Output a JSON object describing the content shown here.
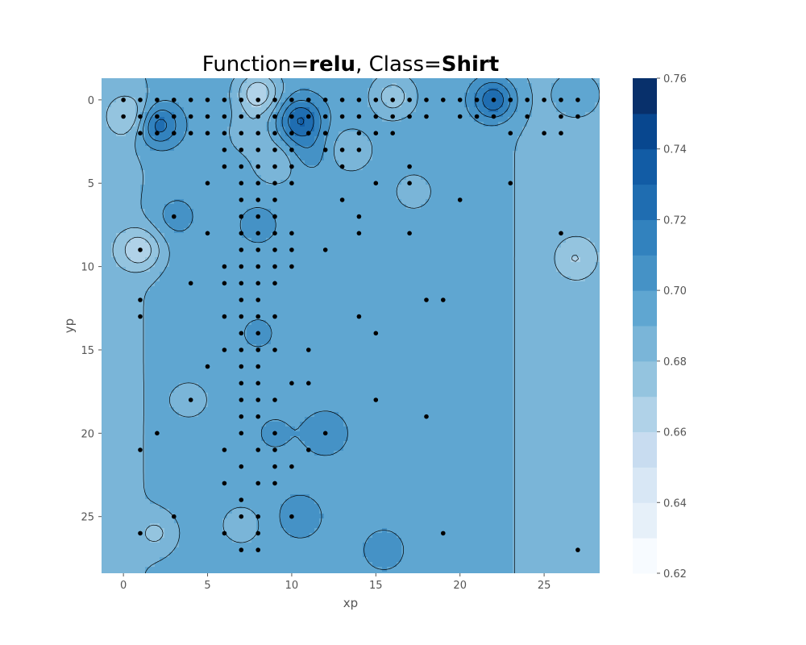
{
  "chart_data": {
    "type": "contour",
    "title": {
      "prefix": "Function=",
      "function": "relu",
      "separator": ", Class=",
      "class": "Shirt"
    },
    "xlabel": "xp",
    "ylabel": "yp",
    "xlim": [
      -1.3,
      28.3
    ],
    "ylim": [
      28.4,
      -1.3
    ],
    "x_ticks": [
      0,
      5,
      10,
      15,
      20,
      25
    ],
    "y_ticks": [
      0,
      5,
      10,
      15,
      20,
      25
    ],
    "colorbar": {
      "range": [
        0.62,
        0.76
      ],
      "levels": [
        0.62,
        0.63,
        0.64,
        0.65,
        0.66,
        0.67,
        0.68,
        0.69,
        0.7,
        0.71,
        0.72,
        0.73,
        0.74,
        0.75,
        0.76
      ],
      "tick_values": [
        0.62,
        0.64,
        0.66,
        0.68,
        0.7,
        0.72,
        0.74,
        0.76
      ],
      "tick_labels": [
        "0.62",
        "0.64",
        "0.66",
        "0.68",
        "0.70",
        "0.72",
        "0.74",
        "0.76"
      ],
      "colormap": "Blues",
      "colors": [
        "#f7fbff",
        "#e6f0f9",
        "#d8e7f5",
        "#c8dcf0",
        "#b0d2e8",
        "#94c4df",
        "#7ab5d8",
        "#5fa6d1",
        "#4592c6",
        "#3282be",
        "#1f6db1",
        "#125ca5",
        "#08478f",
        "#08306b"
      ]
    },
    "field": {
      "base": 0.696,
      "left_edge_value": 0.685,
      "right_edge_value": 0.685,
      "bumps": [
        {
          "x": 22,
          "y": 0,
          "value": 0.732
        },
        {
          "x": 10.5,
          "y": 1.2,
          "value": 0.73
        },
        {
          "x": 2,
          "y": 1.5,
          "value": 0.73
        },
        {
          "x": 8,
          "y": -0.4,
          "value": 0.662
        },
        {
          "x": 0.5,
          "y": 1,
          "value": 0.675
        },
        {
          "x": 1,
          "y": 9,
          "value": 0.668
        },
        {
          "x": 16,
          "y": -0.2,
          "value": 0.675
        },
        {
          "x": 27,
          "y": -0.3,
          "value": 0.71
        },
        {
          "x": 2,
          "y": 26,
          "value": 0.682
        },
        {
          "x": 7,
          "y": 25.5,
          "value": 0.684
        },
        {
          "x": 15.5,
          "y": 27,
          "value": 0.706
        },
        {
          "x": 17.2,
          "y": 5.5,
          "value": 0.686
        },
        {
          "x": 26.8,
          "y": 9.5,
          "value": 0.68
        },
        {
          "x": 9,
          "y": 3.8,
          "value": 0.68
        },
        {
          "x": 13.5,
          "y": 3,
          "value": 0.68
        },
        {
          "x": 7.5,
          "y": 2,
          "value": 0.682
        },
        {
          "x": 8,
          "y": 7.5,
          "value": 0.704
        },
        {
          "x": 12,
          "y": 20,
          "value": 0.708
        },
        {
          "x": 10.5,
          "y": 25,
          "value": 0.707
        },
        {
          "x": 8,
          "y": 14,
          "value": 0.702
        },
        {
          "x": 9,
          "y": 20,
          "value": 0.702
        },
        {
          "x": 4,
          "y": 18,
          "value": 0.686
        },
        {
          "x": 3,
          "y": 7,
          "value": 0.706
        },
        {
          "x": 11,
          "y": 3,
          "value": 0.706
        }
      ]
    },
    "points": [
      [
        0,
        0
      ],
      [
        1,
        0
      ],
      [
        2,
        0
      ],
      [
        3,
        0
      ],
      [
        4,
        0
      ],
      [
        5,
        0
      ],
      [
        6,
        0
      ],
      [
        7,
        0
      ],
      [
        8,
        0
      ],
      [
        9,
        0
      ],
      [
        10,
        0
      ],
      [
        11,
        0
      ],
      [
        12,
        0
      ],
      [
        13,
        0
      ],
      [
        14,
        0
      ],
      [
        15,
        0
      ],
      [
        16,
        0
      ],
      [
        17,
        0
      ],
      [
        18,
        0
      ],
      [
        19,
        0
      ],
      [
        20,
        0
      ],
      [
        21,
        0
      ],
      [
        22,
        0
      ],
      [
        23,
        0
      ],
      [
        24,
        0
      ],
      [
        25,
        0
      ],
      [
        26,
        0
      ],
      [
        27,
        0
      ],
      [
        0,
        1
      ],
      [
        1,
        1
      ],
      [
        2,
        1
      ],
      [
        3,
        1
      ],
      [
        4,
        1
      ],
      [
        5,
        1
      ],
      [
        6,
        1
      ],
      [
        7,
        1
      ],
      [
        8,
        1
      ],
      [
        9,
        1
      ],
      [
        10,
        1
      ],
      [
        11,
        1
      ],
      [
        12,
        1
      ],
      [
        13,
        1
      ],
      [
        14,
        1
      ],
      [
        15,
        1
      ],
      [
        16,
        1
      ],
      [
        17,
        1
      ],
      [
        18,
        1
      ],
      [
        20,
        1
      ],
      [
        21,
        1
      ],
      [
        22,
        1
      ],
      [
        24,
        1
      ],
      [
        26,
        1
      ],
      [
        27,
        1
      ],
      [
        1,
        2
      ],
      [
        2,
        2
      ],
      [
        3,
        2
      ],
      [
        4,
        2
      ],
      [
        5,
        2
      ],
      [
        6,
        2
      ],
      [
        7,
        2
      ],
      [
        8,
        2
      ],
      [
        9,
        2
      ],
      [
        10,
        2
      ],
      [
        11,
        2
      ],
      [
        12,
        2
      ],
      [
        14,
        2
      ],
      [
        15,
        2
      ],
      [
        16,
        2
      ],
      [
        23,
        2
      ],
      [
        25,
        2
      ],
      [
        26,
        2
      ],
      [
        6,
        3
      ],
      [
        7,
        3
      ],
      [
        8,
        3
      ],
      [
        9,
        3
      ],
      [
        10,
        3
      ],
      [
        12,
        3
      ],
      [
        13,
        3
      ],
      [
        14,
        3
      ],
      [
        6,
        4
      ],
      [
        7,
        4
      ],
      [
        8,
        4
      ],
      [
        9,
        4
      ],
      [
        10,
        4
      ],
      [
        13,
        4
      ],
      [
        17,
        4
      ],
      [
        5,
        5
      ],
      [
        7,
        5
      ],
      [
        8,
        5
      ],
      [
        9,
        5
      ],
      [
        10,
        5
      ],
      [
        15,
        5
      ],
      [
        17,
        5
      ],
      [
        23,
        5
      ],
      [
        7,
        6
      ],
      [
        8,
        6
      ],
      [
        9,
        6
      ],
      [
        13,
        6
      ],
      [
        20,
        6
      ],
      [
        3,
        7
      ],
      [
        7,
        7
      ],
      [
        8,
        7
      ],
      [
        9,
        7
      ],
      [
        14,
        7
      ],
      [
        5,
        8
      ],
      [
        7,
        8
      ],
      [
        8,
        8
      ],
      [
        9,
        8
      ],
      [
        10,
        8
      ],
      [
        14,
        8
      ],
      [
        17,
        8
      ],
      [
        26,
        8
      ],
      [
        1,
        9
      ],
      [
        7,
        9
      ],
      [
        8,
        9
      ],
      [
        9,
        9
      ],
      [
        10,
        9
      ],
      [
        12,
        9
      ],
      [
        6,
        10
      ],
      [
        7,
        10
      ],
      [
        8,
        10
      ],
      [
        9,
        10
      ],
      [
        10,
        10
      ],
      [
        4,
        11
      ],
      [
        6,
        11
      ],
      [
        7,
        11
      ],
      [
        8,
        11
      ],
      [
        9,
        11
      ],
      [
        1,
        12
      ],
      [
        7,
        12
      ],
      [
        8,
        12
      ],
      [
        18,
        12
      ],
      [
        19,
        12
      ],
      [
        1,
        13
      ],
      [
        6,
        13
      ],
      [
        7,
        13
      ],
      [
        8,
        13
      ],
      [
        9,
        13
      ],
      [
        14,
        13
      ],
      [
        7,
        14
      ],
      [
        8,
        14
      ],
      [
        15,
        14
      ],
      [
        6,
        15
      ],
      [
        7,
        15
      ],
      [
        8,
        15
      ],
      [
        9,
        15
      ],
      [
        11,
        15
      ],
      [
        5,
        16
      ],
      [
        7,
        16
      ],
      [
        8,
        16
      ],
      [
        7,
        17
      ],
      [
        8,
        17
      ],
      [
        10,
        17
      ],
      [
        11,
        17
      ],
      [
        4,
        18
      ],
      [
        7,
        18
      ],
      [
        8,
        18
      ],
      [
        9,
        18
      ],
      [
        15,
        18
      ],
      [
        7,
        19
      ],
      [
        8,
        19
      ],
      [
        18,
        19
      ],
      [
        2,
        20
      ],
      [
        7,
        20
      ],
      [
        9,
        20
      ],
      [
        12,
        20
      ],
      [
        1,
        21
      ],
      [
        6,
        21
      ],
      [
        8,
        21
      ],
      [
        9,
        21
      ],
      [
        11,
        21
      ],
      [
        7,
        22
      ],
      [
        9,
        22
      ],
      [
        10,
        22
      ],
      [
        6,
        23
      ],
      [
        8,
        23
      ],
      [
        9,
        23
      ],
      [
        7,
        24
      ],
      [
        3,
        25
      ],
      [
        7,
        25
      ],
      [
        8,
        25
      ],
      [
        10,
        25
      ],
      [
        1,
        26
      ],
      [
        6,
        26
      ],
      [
        8,
        26
      ],
      [
        19,
        26
      ],
      [
        7,
        27
      ],
      [
        8,
        27
      ],
      [
        27,
        27
      ]
    ]
  }
}
